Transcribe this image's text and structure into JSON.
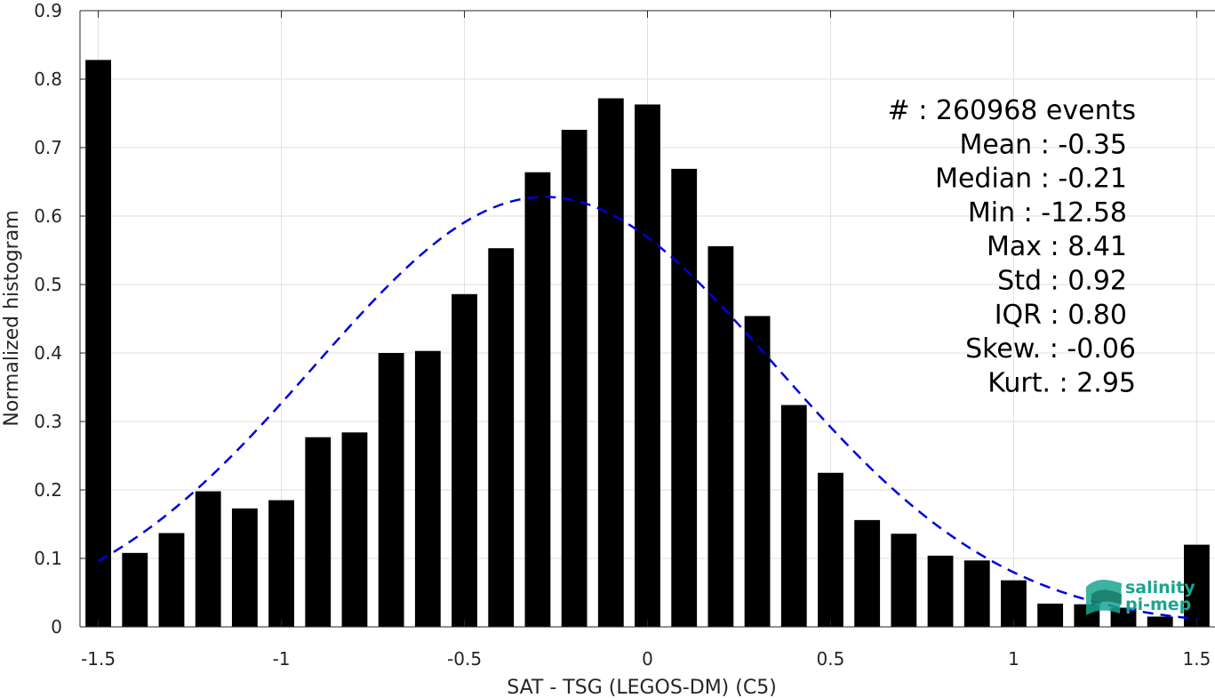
{
  "chart_data": {
    "type": "bar",
    "xlabel": "SAT - TSG (LEGOS-DM) (C5)",
    "ylabel": "Normalized histogram",
    "xlim": [
      -1.55,
      1.55
    ],
    "ylim": [
      0,
      0.9
    ],
    "x_ticks": [
      -1.5,
      -1,
      -0.5,
      0,
      0.5,
      1,
      1.5
    ],
    "x_tick_labels": [
      "-1.5",
      "-1",
      "-0.5",
      "0",
      "0.5",
      "1",
      "1.5"
    ],
    "y_ticks": [
      0,
      0.1,
      0.2,
      0.3,
      0.4,
      0.5,
      0.6,
      0.7,
      0.8,
      0.9
    ],
    "y_tick_labels": [
      "0",
      "0.1",
      "0.2",
      "0.3",
      "0.4",
      "0.5",
      "0.6",
      "0.7",
      "0.8",
      "0.9"
    ],
    "grid": true,
    "bar_color": "#000000",
    "bin_width": 0.1,
    "bar_width_fraction": 0.7,
    "bins": [
      -1.5,
      -1.4,
      -1.3,
      -1.2,
      -1.1,
      -1.0,
      -0.9,
      -0.8,
      -0.7,
      -0.6,
      -0.5,
      -0.4,
      -0.3,
      -0.2,
      -0.1,
      0.0,
      0.1,
      0.2,
      0.3,
      0.4,
      0.5,
      0.6,
      0.7,
      0.8,
      0.9,
      1.0,
      1.1,
      1.2,
      1.3,
      1.4,
      1.5
    ],
    "values": [
      0.828,
      0.108,
      0.137,
      0.198,
      0.173,
      0.185,
      0.277,
      0.284,
      0.4,
      0.403,
      0.486,
      0.553,
      0.664,
      0.726,
      0.772,
      0.763,
      0.669,
      0.556,
      0.454,
      0.324,
      0.225,
      0.156,
      0.136,
      0.104,
      0.097,
      0.068,
      0.034,
      0.033,
      0.028,
      0.015,
      0.12
    ],
    "fit_curve": {
      "style": "dashed",
      "color": "#0000dd",
      "distribution": "normal",
      "mean": -0.28,
      "std": 0.63,
      "peak": 0.628,
      "x_range": [
        -1.5,
        1.5
      ]
    },
    "stats": [
      "#  : 260968 events",
      "Mean : -0.35",
      "Median : -0.21",
      "Min : -12.58",
      "Max : 8.41",
      "Std : 0.92",
      "IQR : 0.80",
      "Skew. : -0.06",
      "Kurt. : 2.95"
    ]
  },
  "logo": {
    "line1": "salinity",
    "line2": "pi-mep",
    "color": "#1aa58f"
  }
}
